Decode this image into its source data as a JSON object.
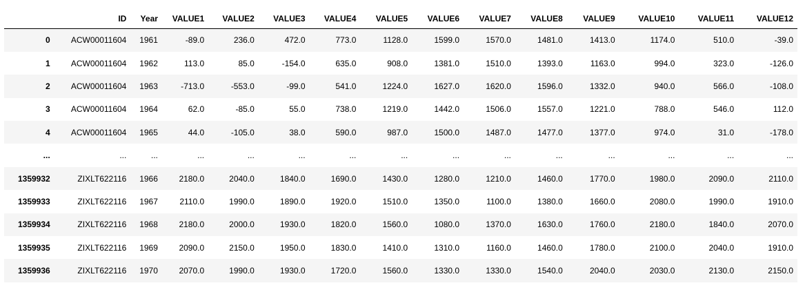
{
  "table": {
    "columns": [
      "",
      "ID",
      "Year",
      "VALUE1",
      "VALUE2",
      "VALUE3",
      "VALUE4",
      "VALUE5",
      "VALUE6",
      "VALUE7",
      "VALUE8",
      "VALUE9",
      "VALUE10",
      "VALUE11",
      "VALUE12"
    ],
    "rows": [
      {
        "index": "0",
        "cells": [
          "ACW00011604",
          "1961",
          "-89.0",
          "236.0",
          "472.0",
          "773.0",
          "1128.0",
          "1599.0",
          "1570.0",
          "1481.0",
          "1413.0",
          "1174.0",
          "510.0",
          "-39.0"
        ]
      },
      {
        "index": "1",
        "cells": [
          "ACW00011604",
          "1962",
          "113.0",
          "85.0",
          "-154.0",
          "635.0",
          "908.0",
          "1381.0",
          "1510.0",
          "1393.0",
          "1163.0",
          "994.0",
          "323.0",
          "-126.0"
        ]
      },
      {
        "index": "2",
        "cells": [
          "ACW00011604",
          "1963",
          "-713.0",
          "-553.0",
          "-99.0",
          "541.0",
          "1224.0",
          "1627.0",
          "1620.0",
          "1596.0",
          "1332.0",
          "940.0",
          "566.0",
          "-108.0"
        ]
      },
      {
        "index": "3",
        "cells": [
          "ACW00011604",
          "1964",
          "62.0",
          "-85.0",
          "55.0",
          "738.0",
          "1219.0",
          "1442.0",
          "1506.0",
          "1557.0",
          "1221.0",
          "788.0",
          "546.0",
          "112.0"
        ]
      },
      {
        "index": "4",
        "cells": [
          "ACW00011604",
          "1965",
          "44.0",
          "-105.0",
          "38.0",
          "590.0",
          "987.0",
          "1500.0",
          "1487.0",
          "1477.0",
          "1377.0",
          "974.0",
          "31.0",
          "-178.0"
        ]
      },
      {
        "index": "...",
        "cells": [
          "...",
          "...",
          "...",
          "...",
          "...",
          "...",
          "...",
          "...",
          "...",
          "...",
          "...",
          "...",
          "...",
          "..."
        ]
      },
      {
        "index": "1359932",
        "cells": [
          "ZIXLT622116",
          "1966",
          "2180.0",
          "2040.0",
          "1840.0",
          "1690.0",
          "1430.0",
          "1280.0",
          "1210.0",
          "1460.0",
          "1770.0",
          "1980.0",
          "2090.0",
          "2110.0"
        ]
      },
      {
        "index": "1359933",
        "cells": [
          "ZIXLT622116",
          "1967",
          "2110.0",
          "1990.0",
          "1890.0",
          "1920.0",
          "1510.0",
          "1350.0",
          "1100.0",
          "1380.0",
          "1660.0",
          "2080.0",
          "1990.0",
          "1910.0"
        ]
      },
      {
        "index": "1359934",
        "cells": [
          "ZIXLT622116",
          "1968",
          "2180.0",
          "2000.0",
          "1930.0",
          "1820.0",
          "1560.0",
          "1080.0",
          "1370.0",
          "1630.0",
          "1760.0",
          "2180.0",
          "1840.0",
          "2070.0"
        ]
      },
      {
        "index": "1359935",
        "cells": [
          "ZIXLT622116",
          "1969",
          "2090.0",
          "2150.0",
          "1950.0",
          "1830.0",
          "1410.0",
          "1310.0",
          "1160.0",
          "1460.0",
          "1780.0",
          "2100.0",
          "2040.0",
          "1910.0"
        ]
      },
      {
        "index": "1359936",
        "cells": [
          "ZIXLT622116",
          "1970",
          "2070.0",
          "1990.0",
          "1930.0",
          "1720.0",
          "1560.0",
          "1330.0",
          "1330.0",
          "1540.0",
          "2040.0",
          "2030.0",
          "2130.0",
          "2150.0"
        ]
      }
    ]
  }
}
